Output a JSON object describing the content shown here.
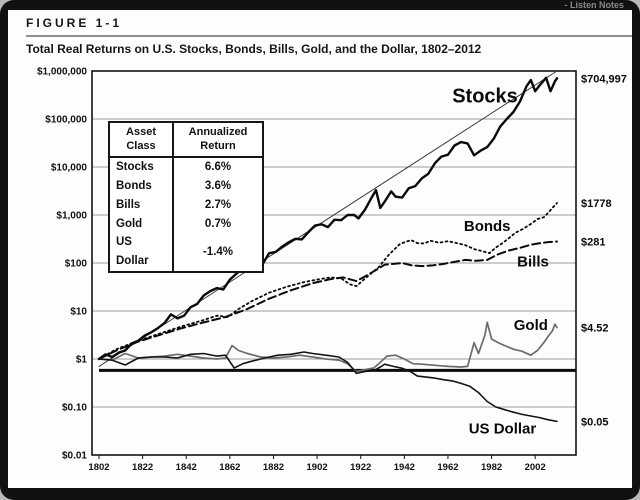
{
  "watermark": "- Listen Notes",
  "header": {
    "figure_label": "FIGURE 1-1"
  },
  "chart_data": {
    "type": "line",
    "title": "Total Real Returns on U.S. Stocks, Bonds, Bills, Gold, and the Dollar, 1802–2012",
    "xlabel": "",
    "ylabel": "",
    "y_scale": "log",
    "grid": true,
    "legend_position": "inline-labels",
    "xlim": [
      1802,
      2012
    ],
    "ylim": [
      0.01,
      1000000
    ],
    "x_ticks": [
      1802,
      1822,
      1842,
      1862,
      1882,
      1902,
      1922,
      1942,
      1962,
      1982,
      2002
    ],
    "y_tick_labels": [
      "$1,000,000",
      "$100,000",
      "$10,000",
      "$1,000",
      "$100",
      "$10",
      "$1",
      "$0.10",
      "$0.01"
    ],
    "reference_line": {
      "value": 0.58
    },
    "series": [
      {
        "name": "Trend",
        "style": "solid",
        "color": "#3c3c3c",
        "width": 1,
        "points": [
          [
            1802,
            0.7
          ],
          [
            2012,
            1000000
          ]
        ]
      },
      {
        "name": "Gold",
        "style": "solid",
        "color": "#6b6b6b",
        "width": 1.7,
        "points": [
          [
            1802,
            1.0
          ],
          [
            1808,
            0.95
          ],
          [
            1814,
            1.3
          ],
          [
            1820,
            1.05
          ],
          [
            1826,
            1.1
          ],
          [
            1832,
            1.15
          ],
          [
            1838,
            1.25
          ],
          [
            1844,
            1.15
          ],
          [
            1850,
            1.05
          ],
          [
            1856,
            1.0
          ],
          [
            1860,
            1.05
          ],
          [
            1863,
            1.9
          ],
          [
            1866,
            1.5
          ],
          [
            1870,
            1.3
          ],
          [
            1876,
            1.1
          ],
          [
            1882,
            1.05
          ],
          [
            1888,
            1.1
          ],
          [
            1894,
            1.2
          ],
          [
            1900,
            1.1
          ],
          [
            1906,
            1.0
          ],
          [
            1912,
            0.95
          ],
          [
            1916,
            0.8
          ],
          [
            1920,
            0.55
          ],
          [
            1924,
            0.6
          ],
          [
            1928,
            0.65
          ],
          [
            1931,
            0.85
          ],
          [
            1934,
            1.15
          ],
          [
            1938,
            1.2
          ],
          [
            1942,
            1.0
          ],
          [
            1946,
            0.8
          ],
          [
            1950,
            0.78
          ],
          [
            1956,
            0.74
          ],
          [
            1962,
            0.7
          ],
          [
            1968,
            0.68
          ],
          [
            1971,
            0.7
          ],
          [
            1974,
            2.2
          ],
          [
            1976,
            1.3
          ],
          [
            1979,
            3.2
          ],
          [
            1980,
            5.8
          ],
          [
            1982,
            2.6
          ],
          [
            1985,
            2.2
          ],
          [
            1988,
            1.9
          ],
          [
            1992,
            1.6
          ],
          [
            1996,
            1.45
          ],
          [
            2000,
            1.2
          ],
          [
            2003,
            1.5
          ],
          [
            2006,
            2.2
          ],
          [
            2008,
            3.0
          ],
          [
            2010,
            3.9
          ],
          [
            2011,
            5.3
          ],
          [
            2012,
            4.52
          ]
        ]
      },
      {
        "name": "US Dollar",
        "style": "solid",
        "color": "#141414",
        "width": 1.6,
        "points": [
          [
            1802,
            1.0
          ],
          [
            1808,
            0.95
          ],
          [
            1814,
            0.75
          ],
          [
            1820,
            1.05
          ],
          [
            1826,
            1.1
          ],
          [
            1832,
            1.1
          ],
          [
            1838,
            1.05
          ],
          [
            1844,
            1.25
          ],
          [
            1850,
            1.3
          ],
          [
            1856,
            1.15
          ],
          [
            1860,
            1.2
          ],
          [
            1864,
            0.65
          ],
          [
            1868,
            0.8
          ],
          [
            1872,
            0.9
          ],
          [
            1878,
            1.05
          ],
          [
            1884,
            1.2
          ],
          [
            1890,
            1.25
          ],
          [
            1896,
            1.4
          ],
          [
            1900,
            1.3
          ],
          [
            1906,
            1.2
          ],
          [
            1912,
            1.1
          ],
          [
            1916,
            0.85
          ],
          [
            1920,
            0.5
          ],
          [
            1924,
            0.55
          ],
          [
            1928,
            0.57
          ],
          [
            1931,
            0.68
          ],
          [
            1933,
            0.78
          ],
          [
            1937,
            0.7
          ],
          [
            1941,
            0.64
          ],
          [
            1945,
            0.54
          ],
          [
            1948,
            0.44
          ],
          [
            1952,
            0.42
          ],
          [
            1956,
            0.4
          ],
          [
            1960,
            0.37
          ],
          [
            1964,
            0.35
          ],
          [
            1968,
            0.31
          ],
          [
            1972,
            0.27
          ],
          [
            1976,
            0.2
          ],
          [
            1980,
            0.13
          ],
          [
            1984,
            0.1
          ],
          [
            1988,
            0.088
          ],
          [
            1992,
            0.078
          ],
          [
            1996,
            0.07
          ],
          [
            2000,
            0.065
          ],
          [
            2004,
            0.06
          ],
          [
            2008,
            0.054
          ],
          [
            2012,
            0.05
          ]
        ]
      },
      {
        "name": "Bills",
        "style": "dashed",
        "color": "#0a0a0a",
        "width": 2,
        "points": [
          [
            1802,
            1.0
          ],
          [
            1810,
            1.5
          ],
          [
            1820,
            2.3
          ],
          [
            1830,
            3.2
          ],
          [
            1840,
            4.4
          ],
          [
            1850,
            5.8
          ],
          [
            1860,
            7.5
          ],
          [
            1870,
            11
          ],
          [
            1880,
            18
          ],
          [
            1890,
            27
          ],
          [
            1900,
            38
          ],
          [
            1908,
            46
          ],
          [
            1914,
            50
          ],
          [
            1920,
            42
          ],
          [
            1925,
            56
          ],
          [
            1930,
            76
          ],
          [
            1933,
            92
          ],
          [
            1937,
            96
          ],
          [
            1941,
            100
          ],
          [
            1945,
            90
          ],
          [
            1950,
            86
          ],
          [
            1955,
            89
          ],
          [
            1960,
            96
          ],
          [
            1965,
            106
          ],
          [
            1970,
            116
          ],
          [
            1975,
            111
          ],
          [
            1980,
            116
          ],
          [
            1985,
            152
          ],
          [
            1990,
            182
          ],
          [
            1995,
            206
          ],
          [
            2000,
            240
          ],
          [
            2005,
            262
          ],
          [
            2008,
            272
          ],
          [
            2012,
            281
          ]
        ]
      },
      {
        "name": "Bonds",
        "style": "dotted",
        "color": "#0a0a0a",
        "width": 1.8,
        "points": [
          [
            1802,
            1.0
          ],
          [
            1810,
            1.6
          ],
          [
            1820,
            2.4
          ],
          [
            1830,
            3.4
          ],
          [
            1840,
            4.8
          ],
          [
            1850,
            6.5
          ],
          [
            1856,
            8.0
          ],
          [
            1861,
            7.5
          ],
          [
            1866,
            11
          ],
          [
            1872,
            16
          ],
          [
            1880,
            24
          ],
          [
            1888,
            32
          ],
          [
            1896,
            40
          ],
          [
            1902,
            45
          ],
          [
            1908,
            50
          ],
          [
            1913,
            48
          ],
          [
            1917,
            36
          ],
          [
            1920,
            33
          ],
          [
            1925,
            52
          ],
          [
            1930,
            80
          ],
          [
            1935,
            150
          ],
          [
            1940,
            250
          ],
          [
            1945,
            300
          ],
          [
            1948,
            260
          ],
          [
            1951,
            255
          ],
          [
            1954,
            290
          ],
          [
            1958,
            265
          ],
          [
            1962,
            285
          ],
          [
            1966,
            260
          ],
          [
            1970,
            235
          ],
          [
            1974,
            195
          ],
          [
            1978,
            175
          ],
          [
            1981,
            160
          ],
          [
            1984,
            210
          ],
          [
            1987,
            260
          ],
          [
            1990,
            330
          ],
          [
            1993,
            430
          ],
          [
            1996,
            500
          ],
          [
            2000,
            650
          ],
          [
            2003,
            820
          ],
          [
            2006,
            900
          ],
          [
            2008,
            1120
          ],
          [
            2010,
            1420
          ],
          [
            2012,
            1778
          ]
        ]
      },
      {
        "name": "Stocks",
        "style": "solid",
        "color": "#0a0a0a",
        "width": 2.4,
        "points": [
          [
            1802,
            1.0
          ],
          [
            1805,
            1.25
          ],
          [
            1808,
            1.1
          ],
          [
            1811,
            1.35
          ],
          [
            1814,
            1.5
          ],
          [
            1817,
            2.1
          ],
          [
            1820,
            2.4
          ],
          [
            1823,
            3.1
          ],
          [
            1826,
            3.6
          ],
          [
            1829,
            4.4
          ],
          [
            1832,
            5.6
          ],
          [
            1835,
            8.5
          ],
          [
            1838,
            7.0
          ],
          [
            1841,
            8.0
          ],
          [
            1844,
            12
          ],
          [
            1847,
            14
          ],
          [
            1850,
            21
          ],
          [
            1853,
            26
          ],
          [
            1856,
            30
          ],
          [
            1859,
            28
          ],
          [
            1862,
            45
          ],
          [
            1865,
            60
          ],
          [
            1868,
            75
          ],
          [
            1871,
            95
          ],
          [
            1874,
            100
          ],
          [
            1877,
            95
          ],
          [
            1880,
            160
          ],
          [
            1883,
            170
          ],
          [
            1886,
            220
          ],
          [
            1889,
            270
          ],
          [
            1892,
            320
          ],
          [
            1895,
            310
          ],
          [
            1898,
            440
          ],
          [
            1901,
            600
          ],
          [
            1904,
            640
          ],
          [
            1907,
            560
          ],
          [
            1910,
            800
          ],
          [
            1913,
            780
          ],
          [
            1916,
            1000
          ],
          [
            1919,
            1000
          ],
          [
            1921,
            850
          ],
          [
            1924,
            1300
          ],
          [
            1927,
            2300
          ],
          [
            1929,
            3300
          ],
          [
            1931,
            1400
          ],
          [
            1933,
            1900
          ],
          [
            1936,
            3100
          ],
          [
            1938,
            2400
          ],
          [
            1941,
            2300
          ],
          [
            1944,
            3600
          ],
          [
            1947,
            4000
          ],
          [
            1950,
            5800
          ],
          [
            1953,
            7200
          ],
          [
            1956,
            12000
          ],
          [
            1959,
            16500
          ],
          [
            1962,
            18000
          ],
          [
            1965,
            28000
          ],
          [
            1968,
            33000
          ],
          [
            1971,
            31000
          ],
          [
            1974,
            17500
          ],
          [
            1977,
            22000
          ],
          [
            1980,
            26000
          ],
          [
            1983,
            39000
          ],
          [
            1986,
            70000
          ],
          [
            1989,
            100000
          ],
          [
            1992,
            140000
          ],
          [
            1995,
            230000
          ],
          [
            1998,
            480000
          ],
          [
            2000,
            650000
          ],
          [
            2002,
            380000
          ],
          [
            2004,
            500000
          ],
          [
            2007,
            720000
          ],
          [
            2009,
            380000
          ],
          [
            2011,
            600000
          ],
          [
            2012,
            704997
          ]
        ]
      }
    ],
    "series_labels": [
      {
        "text": "Stocks",
        "year": 1979,
        "value": 220000,
        "size": 20
      },
      {
        "text": "Bonds",
        "year": 1980,
        "value": 465,
        "size": 15
      },
      {
        "text": "Bills",
        "year": 2001,
        "value": 85,
        "size": 15
      },
      {
        "text": "Gold",
        "year": 2000,
        "value": 4.0,
        "size": 15
      },
      {
        "text": "US Dollar",
        "year": 1987,
        "value": 0.028,
        "size": 15
      }
    ],
    "end_labels": [
      {
        "text": "$704,997",
        "value": 704997
      },
      {
        "text": "$1778",
        "value": 1778
      },
      {
        "text": "$281",
        "value": 281
      },
      {
        "text": "$4.52",
        "value": 4.52
      },
      {
        "text": "$0.05",
        "value": 0.05
      }
    ],
    "inset_table": {
      "headers": [
        "Asset Class",
        "Annualized Return"
      ],
      "rows": [
        {
          "asset": "Stocks",
          "return": "6.6%"
        },
        {
          "asset": "Bonds",
          "return": "3.6%"
        },
        {
          "asset": "Bills",
          "return": "2.7%"
        },
        {
          "asset": "Gold",
          "return": "0.7%"
        },
        {
          "asset": "US Dollar",
          "return": "-1.4%"
        }
      ]
    }
  }
}
